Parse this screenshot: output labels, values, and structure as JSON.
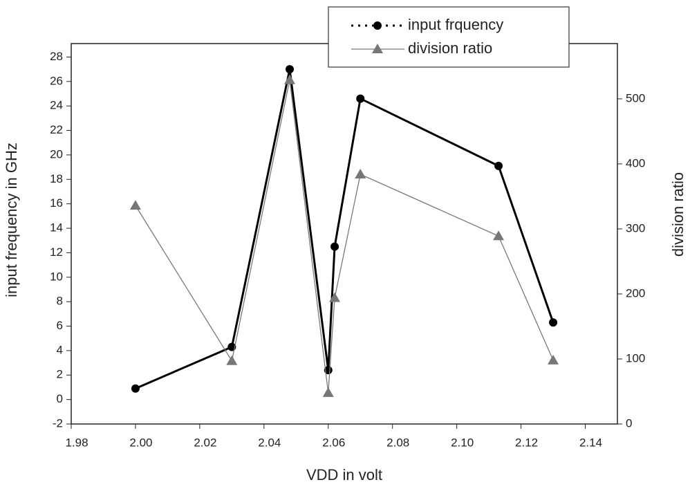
{
  "chart_data": {
    "type": "line",
    "x_label": "VDD in volt",
    "y_label": "input frequency in GHz",
    "y2_label": "division ratio",
    "x": [
      2.0,
      2.03,
      2.048,
      2.06,
      2.062,
      2.07,
      2.113,
      2.13
    ],
    "series": [
      {
        "name": "input frquency",
        "color": "#000000",
        "marker": "circle",
        "values": [
          0.9,
          4.3,
          27.0,
          2.4,
          12.5,
          24.6,
          19.1,
          6.3
        ]
      },
      {
        "name": "division ratio",
        "color": "#777777",
        "marker": "triangle",
        "axis": "y2",
        "values": [
          336,
          97,
          529,
          48,
          194,
          384,
          289,
          98
        ]
      }
    ],
    "xlim": [
      1.98,
      2.15
    ],
    "xticks": [
      1.98,
      {
        "value": 2,
        "label": "2.00"
      },
      2.02,
      2.04,
      2.06,
      2.08,
      {
        "value": 2.1,
        "label": "2.10"
      },
      2.12,
      2.14
    ],
    "ylim": [
      -2,
      29.1
    ],
    "yticks": [
      -2,
      0,
      2,
      4,
      6,
      8,
      10,
      12,
      14,
      16,
      18,
      20,
      22,
      24,
      26,
      28
    ],
    "y2lim": [
      0,
      585
    ],
    "y2ticks": [
      0,
      100,
      200,
      300,
      400,
      500
    ],
    "grid": false
  }
}
